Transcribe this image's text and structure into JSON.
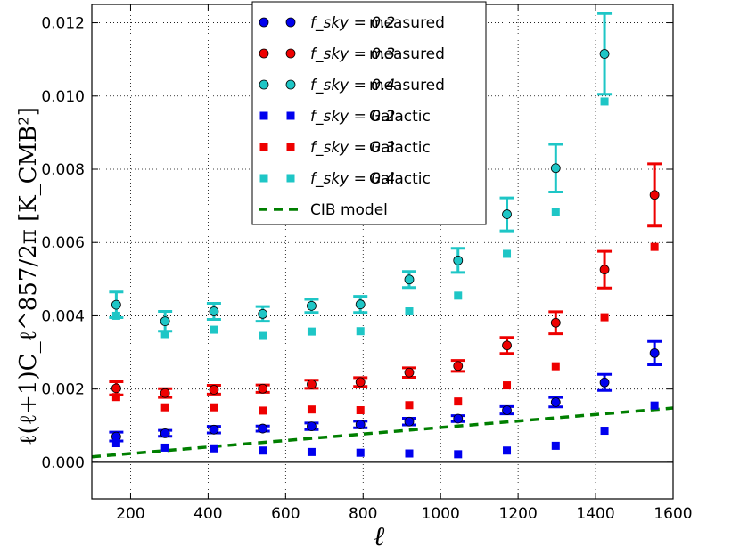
{
  "chart_data": {
    "type": "scatter",
    "title": "",
    "xlabel": "ℓ",
    "ylabel": "ℓ(ℓ+1)C_ℓ^857/2π [K_CMB²]",
    "xlim": [
      100,
      1600
    ],
    "ylim": [
      -0.001,
      0.0125
    ],
    "xticks": [
      200,
      400,
      600,
      800,
      1000,
      1200,
      1400,
      1600
    ],
    "yticks": [
      0.0,
      0.002,
      0.004,
      0.006,
      0.008,
      0.01,
      0.012
    ],
    "ytick_labels": [
      "0.000",
      "0.002",
      "0.004",
      "0.006",
      "0.008",
      "0.010",
      "0.012"
    ],
    "grid": true,
    "legend_position": "top-center",
    "series": [
      {
        "name": "fsky=0.2 measured",
        "legend_math": "f_sky = 0.2",
        "legend_suffix": "measured",
        "marker": "circle",
        "color": "#0000ee",
        "x": [
          163,
          289,
          415,
          541,
          667,
          793,
          919,
          1045,
          1171,
          1297,
          1423,
          1552
        ],
        "y": [
          0.0007,
          0.00079,
          0.00089,
          0.00092,
          0.00098,
          0.00103,
          0.00111,
          0.00119,
          0.00142,
          0.00164,
          0.00218,
          0.00298
        ],
        "yerr": [
          0.00012,
          8e-05,
          9e-05,
          7e-05,
          9e-05,
          9e-05,
          9e-05,
          8e-05,
          0.0001,
          0.00013,
          0.00022,
          0.00032
        ]
      },
      {
        "name": "fsky=0.3 measured",
        "legend_math": "f_sky = 0.3",
        "legend_suffix": "measured",
        "marker": "circle",
        "color": "#ee0000",
        "x": [
          163,
          289,
          415,
          541,
          667,
          793,
          919,
          1045,
          1171,
          1297,
          1423,
          1552
        ],
        "y": [
          0.00202,
          0.00189,
          0.00198,
          0.00201,
          0.00213,
          0.00219,
          0.00245,
          0.00263,
          0.00319,
          0.00381,
          0.00526,
          0.0073
        ],
        "yerr": [
          0.00018,
          0.00012,
          0.00012,
          0.0001,
          0.00011,
          0.00012,
          0.00013,
          0.00015,
          0.00022,
          0.0003,
          0.0005,
          0.00085
        ]
      },
      {
        "name": "fsky=0.4 measured",
        "legend_math": "f_sky = 0.4",
        "legend_suffix": "measured",
        "marker": "circle",
        "color": "#1ec6c6",
        "x": [
          163,
          289,
          415,
          541,
          667,
          793,
          919,
          1045,
          1171,
          1297,
          1423,
          1552
        ],
        "y": [
          0.0043,
          0.00385,
          0.00412,
          0.00405,
          0.00427,
          0.00431,
          0.00499,
          0.00551,
          0.00677,
          0.00803,
          0.01115,
          null
        ],
        "yerr": [
          0.00035,
          0.00027,
          0.00022,
          0.0002,
          0.00018,
          0.00022,
          0.00022,
          0.00033,
          0.00045,
          0.00065,
          0.0011,
          null
        ]
      },
      {
        "name": "fsky=0.2 Galactic",
        "legend_math": "f_sky = 0.2",
        "legend_suffix": "Galactic",
        "marker": "square",
        "color": "#0000ee",
        "x": [
          163,
          289,
          415,
          541,
          667,
          793,
          919,
          1045,
          1171,
          1297,
          1423,
          1552
        ],
        "y": [
          0.00052,
          0.0004,
          0.00038,
          0.00032,
          0.00028,
          0.00026,
          0.00024,
          0.00022,
          0.00032,
          0.00045,
          0.00086,
          0.00155
        ]
      },
      {
        "name": "fsky=0.3 Galactic",
        "legend_math": "f_sky = 0.3",
        "legend_suffix": "Galactic",
        "marker": "square",
        "color": "#ee0000",
        "x": [
          163,
          289,
          415,
          541,
          667,
          793,
          919,
          1045,
          1171,
          1297,
          1423,
          1552
        ],
        "y": [
          0.00178,
          0.0015,
          0.0015,
          0.00141,
          0.00144,
          0.00142,
          0.00156,
          0.00166,
          0.0021,
          0.00262,
          0.00396,
          0.00588
        ]
      },
      {
        "name": "fsky=0.4 Galactic",
        "legend_math": "f_sky = 0.4",
        "legend_suffix": "Galactic",
        "marker": "square",
        "color": "#1ec6c6",
        "x": [
          163,
          289,
          415,
          541,
          667,
          793,
          919,
          1045,
          1171,
          1297,
          1423,
          1552
        ],
        "y": [
          0.004,
          0.0035,
          0.00362,
          0.00345,
          0.00357,
          0.00358,
          0.00412,
          0.00455,
          0.00569,
          0.00684,
          0.00985,
          null
        ]
      },
      {
        "name": "CIB model",
        "legend_math": "",
        "legend_suffix": "CIB model",
        "marker": "dashed-line",
        "color": "#007f00",
        "x": [
          100,
          1600
        ],
        "y": [
          0.00015,
          0.00148
        ]
      }
    ]
  }
}
